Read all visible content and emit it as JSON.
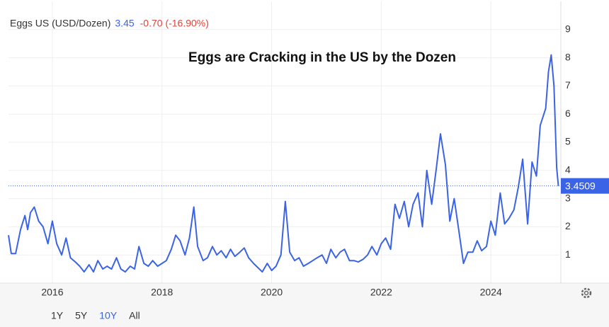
{
  "header": {
    "symbol": "Eggs US (USD/Dozen)",
    "price": "3.45",
    "change": "-0.70 (-16.90%)"
  },
  "controls": {
    "ranges": [
      "1Y",
      "5Y",
      "10Y",
      "All"
    ],
    "active": 2
  },
  "chart_data": {
    "type": "line",
    "title": "Eggs are Cracking in the US by the Dozen",
    "x": [
      2015.2,
      2015.25,
      2015.33,
      2015.42,
      2015.5,
      2015.55,
      2015.6,
      2015.67,
      2015.75,
      2015.83,
      2015.92,
      2016.0,
      2016.08,
      2016.17,
      2016.25,
      2016.33,
      2016.42,
      2016.5,
      2016.58,
      2016.67,
      2016.75,
      2016.83,
      2016.92,
      2017.0,
      2017.08,
      2017.17,
      2017.25,
      2017.33,
      2017.42,
      2017.5,
      2017.58,
      2017.67,
      2017.75,
      2017.83,
      2017.92,
      2018.0,
      2018.08,
      2018.17,
      2018.25,
      2018.33,
      2018.42,
      2018.5,
      2018.58,
      2018.65,
      2018.75,
      2018.83,
      2018.92,
      2019.0,
      2019.08,
      2019.17,
      2019.25,
      2019.33,
      2019.42,
      2019.5,
      2019.58,
      2019.67,
      2019.75,
      2019.83,
      2019.92,
      2020.0,
      2020.08,
      2020.17,
      2020.25,
      2020.33,
      2020.42,
      2020.5,
      2020.58,
      2020.67,
      2020.75,
      2020.83,
      2020.92,
      2021.0,
      2021.08,
      2021.17,
      2021.25,
      2021.33,
      2021.42,
      2021.5,
      2021.58,
      2021.67,
      2021.75,
      2021.83,
      2021.92,
      2022.0,
      2022.08,
      2022.17,
      2022.25,
      2022.33,
      2022.42,
      2022.5,
      2022.58,
      2022.67,
      2022.75,
      2022.83,
      2022.92,
      2023.0,
      2023.08,
      2023.17,
      2023.25,
      2023.33,
      2023.42,
      2023.5,
      2023.58,
      2023.67,
      2023.75,
      2023.83,
      2023.92,
      2024.0,
      2024.08,
      2024.17,
      2024.25,
      2024.33,
      2024.42,
      2024.5,
      2024.58,
      2024.67,
      2024.75,
      2024.83,
      2024.9,
      2025.0,
      2025.05,
      2025.1,
      2025.15,
      2025.2,
      2025.23
    ],
    "series": [
      {
        "name": "Eggs US",
        "color": "#3b63e6",
        "values": [
          1.7,
          1.05,
          1.05,
          1.9,
          2.4,
          1.9,
          2.5,
          2.7,
          2.2,
          2.0,
          1.4,
          2.2,
          1.4,
          1.0,
          1.6,
          0.9,
          0.75,
          0.6,
          0.4,
          0.65,
          0.4,
          0.8,
          0.5,
          0.6,
          0.5,
          0.9,
          0.5,
          0.4,
          0.6,
          0.5,
          1.3,
          0.7,
          0.6,
          0.8,
          0.6,
          0.7,
          0.8,
          1.2,
          1.7,
          1.5,
          1.0,
          1.6,
          2.7,
          1.3,
          0.8,
          0.9,
          1.3,
          1.0,
          1.15,
          0.9,
          1.2,
          0.95,
          1.1,
          1.25,
          0.9,
          0.7,
          0.55,
          0.4,
          0.7,
          0.45,
          0.6,
          1.0,
          2.9,
          1.1,
          0.8,
          0.9,
          0.6,
          0.7,
          0.8,
          0.9,
          1.0,
          0.7,
          1.2,
          0.9,
          1.1,
          1.2,
          0.8,
          0.8,
          0.75,
          0.85,
          1.0,
          1.3,
          1.0,
          1.4,
          1.6,
          1.2,
          2.8,
          2.3,
          2.9,
          2.0,
          2.8,
          3.2,
          2.0,
          4.0,
          2.8,
          4.0,
          5.3,
          4.2,
          2.2,
          3.0,
          1.8,
          0.7,
          1.1,
          1.1,
          1.5,
          1.15,
          1.3,
          2.2,
          1.7,
          3.2,
          2.1,
          2.3,
          2.6,
          3.4,
          4.4,
          2.1,
          4.3,
          3.8,
          5.6,
          6.2,
          7.5,
          8.1,
          7.0,
          4.1,
          3.45
        ]
      }
    ],
    "last_value": 3.4509,
    "xlim": [
      2015.2,
      2025.25
    ],
    "xticks": [
      2016,
      2018,
      2020,
      2022,
      2024
    ],
    "ylim": [
      0,
      10
    ],
    "yticks": [
      1,
      2,
      3,
      4,
      5,
      6,
      7,
      8,
      9
    ],
    "grid": true
  }
}
